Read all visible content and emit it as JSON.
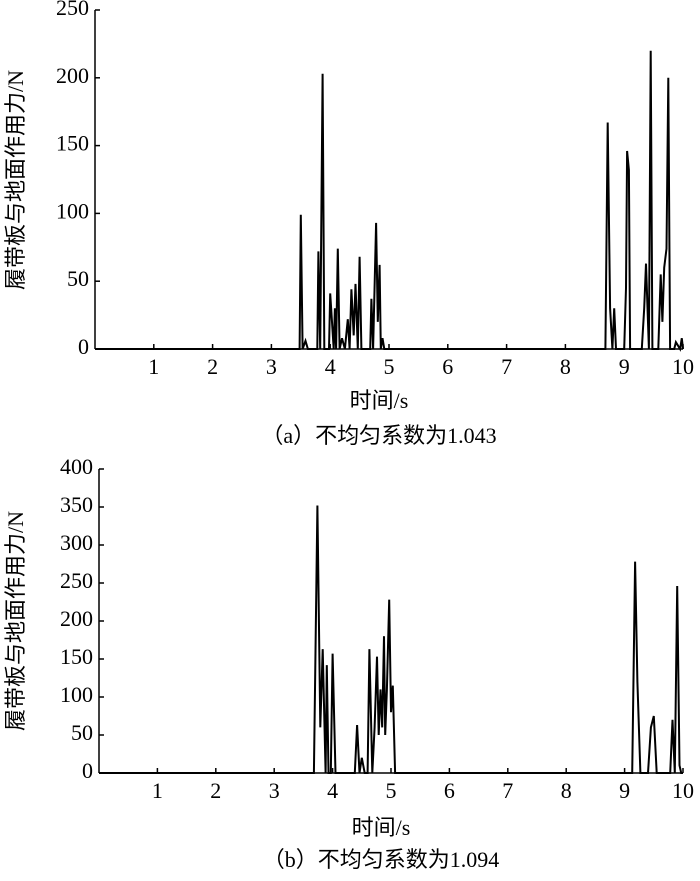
{
  "chart_data": [
    {
      "type": "line",
      "caption": "（a）不均匀系数为1.043",
      "x_label": "时间/s",
      "y_label": "履带板与地面作用力/N",
      "color": "#000000",
      "xlim": [
        0,
        10
      ],
      "xticks": [
        1,
        2,
        3,
        4,
        5,
        6,
        7,
        8,
        9,
        10
      ],
      "ylim": [
        0,
        250
      ],
      "yticks": [
        0,
        50,
        100,
        150,
        200,
        250
      ],
      "x": [
        0,
        3.48,
        3.5,
        3.53,
        3.58,
        3.62,
        3.78,
        3.8,
        3.83,
        3.87,
        3.9,
        3.98,
        4.0,
        4.03,
        4.06,
        4.08,
        4.1,
        4.13,
        4.16,
        4.2,
        4.25,
        4.3,
        4.33,
        4.36,
        4.4,
        4.43,
        4.47,
        4.5,
        4.53,
        4.68,
        4.7,
        4.73,
        4.78,
        4.81,
        4.84,
        4.86,
        4.89,
        4.92,
        4.95,
        8.68,
        8.72,
        8.76,
        8.8,
        8.83,
        8.86,
        9.0,
        9.03,
        9.05,
        9.08,
        9.1,
        9.3,
        9.34,
        9.37,
        9.42,
        9.45,
        9.48,
        9.58,
        9.62,
        9.65,
        9.68,
        9.72,
        9.75,
        9.78,
        9.85,
        9.88,
        9.95,
        9.98,
        10
      ],
      "values": [
        0,
        0,
        99,
        0,
        6,
        0,
        0,
        72,
        0,
        203,
        0,
        0,
        41,
        20,
        0,
        30,
        0,
        74,
        0,
        8,
        0,
        22,
        0,
        44,
        10,
        48,
        0,
        68,
        0,
        0,
        37,
        0,
        93,
        20,
        62,
        0,
        8,
        0,
        0,
        0,
        167,
        30,
        0,
        30,
        0,
        0,
        45,
        146,
        132,
        0,
        0,
        30,
        63,
        0,
        220,
        0,
        0,
        55,
        20,
        60,
        74,
        200,
        0,
        0,
        5,
        0,
        8,
        0
      ]
    },
    {
      "type": "line",
      "caption": "（b）不均匀系数为1.094",
      "x_label": "时间/s",
      "y_label": "履带板与地面作用力/N",
      "color": "#000000",
      "xlim": [
        0,
        10
      ],
      "xticks": [
        1,
        2,
        3,
        4,
        5,
        6,
        7,
        8,
        9,
        10
      ],
      "ylim": [
        0,
        400
      ],
      "yticks": [
        0,
        50,
        100,
        150,
        200,
        250,
        300,
        350,
        400
      ],
      "x": [
        0,
        3.68,
        3.7,
        3.74,
        3.79,
        3.83,
        3.88,
        3.9,
        3.93,
        3.97,
        4.0,
        4.05,
        4.38,
        4.42,
        4.46,
        4.5,
        4.55,
        4.6,
        4.63,
        4.68,
        4.72,
        4.76,
        4.79,
        4.82,
        4.85,
        4.88,
        4.9,
        4.93,
        4.97,
        5.0,
        5.03,
        5.07,
        9.13,
        9.18,
        9.22,
        9.27,
        9.4,
        9.45,
        9.5,
        9.55,
        9.78,
        9.82,
        9.86,
        9.9,
        9.94,
        9.97,
        10
      ],
      "values": [
        0,
        0,
        120,
        352,
        60,
        163,
        0,
        142,
        0,
        0,
        157,
        0,
        0,
        63,
        0,
        20,
        0,
        0,
        163,
        0,
        60,
        153,
        50,
        110,
        60,
        180,
        50,
        110,
        228,
        80,
        115,
        0,
        0,
        278,
        120,
        0,
        0,
        60,
        75,
        0,
        0,
        70,
        0,
        246,
        10,
        0,
        0
      ]
    }
  ]
}
